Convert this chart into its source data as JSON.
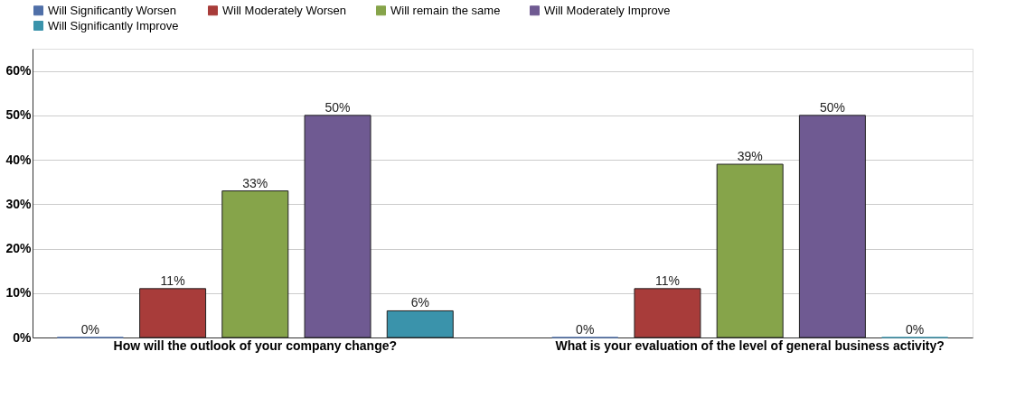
{
  "chart_data": {
    "type": "bar",
    "categories": [
      "How will the outlook of your company change?",
      "What is your evaluation of the level of general business activity?"
    ],
    "series": [
      {
        "name": "Will Significantly Worsen",
        "color": "#4f6fa8",
        "values": [
          0,
          0
        ]
      },
      {
        "name": "Will Moderately Worsen",
        "color": "#a83c3a",
        "values": [
          11,
          11
        ]
      },
      {
        "name": "Will remain the same",
        "color": "#86a44a",
        "values": [
          33,
          39
        ]
      },
      {
        "name": "Will Moderately Improve",
        "color": "#6f5a92",
        "values": [
          50,
          50
        ]
      },
      {
        "name": "Will Significantly Improve",
        "color": "#3a93ab",
        "values": [
          6,
          0
        ]
      }
    ],
    "ylim": [
      0,
      65
    ],
    "yticks": [
      {
        "value": 0,
        "label": "0%"
      },
      {
        "value": 10,
        "label": "10%"
      },
      {
        "value": 20,
        "label": "20%"
      },
      {
        "value": 30,
        "label": "30%"
      },
      {
        "value": 40,
        "label": "40%"
      },
      {
        "value": 50,
        "label": "50%"
      },
      {
        "value": 60,
        "label": "60%"
      }
    ],
    "value_labels": [
      [
        "0%",
        "0%"
      ],
      [
        "11%",
        "11%"
      ],
      [
        "33%",
        "39%"
      ],
      [
        "50%",
        "50%"
      ],
      [
        "6%",
        "0%"
      ]
    ],
    "grid": "y",
    "legend": "top"
  }
}
